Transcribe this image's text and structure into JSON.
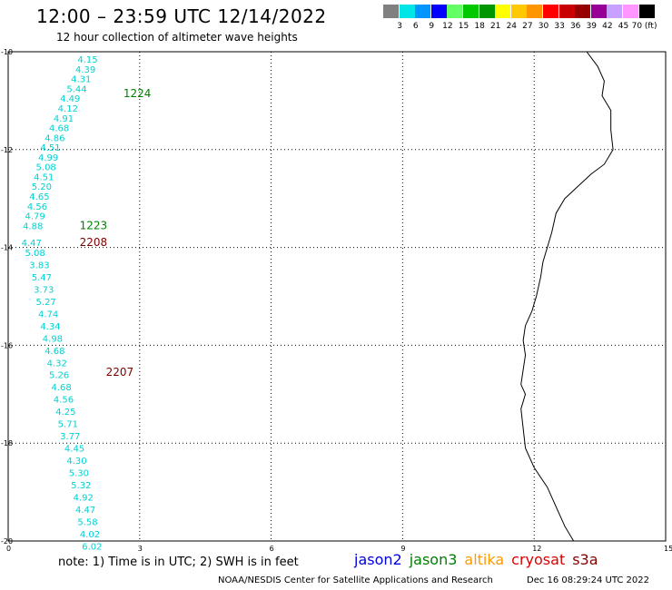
{
  "header": {
    "title": "12:00 – 23:59 UTC 12/14/2022",
    "subtitle": "12 hour collection of altimeter wave heights"
  },
  "color_scale": {
    "swatches": [
      "#808080",
      "#00e6e6",
      "#0096ff",
      "#0000ff",
      "#64ff64",
      "#00c800",
      "#009600",
      "#ffff00",
      "#ffc800",
      "#ff9600",
      "#ff0000",
      "#c80000",
      "#960000",
      "#960096",
      "#c8a0ff",
      "#ff96ff",
      "#000000"
    ],
    "labels": [
      "3",
      "6",
      "9",
      "12",
      "15",
      "18",
      "21",
      "24",
      "27",
      "30",
      "33",
      "36",
      "39",
      "42",
      "45",
      "70 (ft)"
    ]
  },
  "map": {
    "x_ticks": [
      "0",
      "3",
      "6",
      "9",
      "12",
      "15"
    ],
    "y_ticks": [
      "-10",
      "-12",
      "-14",
      "-16",
      "-18",
      "-20"
    ],
    "extent": {
      "lon": [
        0,
        15
      ],
      "lat": [
        -20,
        -10
      ]
    },
    "grid": "dotted",
    "coastline_icon": "coastline-line"
  },
  "passes": [
    {
      "label": "1224",
      "color": "#008000",
      "lat": -10.85,
      "lon": 1.8
    },
    {
      "label": "1223",
      "color": "#008000",
      "lat": -13.55,
      "lon": 0.8
    },
    {
      "label": "2208",
      "color": "#800000",
      "lat": -13.9,
      "lon": 0.8
    },
    {
      "label": "2207",
      "color": "#800000",
      "lat": -16.55,
      "lon": 1.4
    }
  ],
  "wave_heights": [
    {
      "v": "4.15",
      "lat": -10.15,
      "lon": 1.5
    },
    {
      "v": "4.39",
      "lat": -10.35,
      "lon": 1.45
    },
    {
      "v": "4.31",
      "lat": -10.55,
      "lon": 1.35
    },
    {
      "v": "5.44",
      "lat": -10.75,
      "lon": 1.25
    },
    {
      "v": "4.49",
      "lat": -10.95,
      "lon": 1.1
    },
    {
      "v": "4.12",
      "lat": -11.15,
      "lon": 1.05
    },
    {
      "v": "4.91",
      "lat": -11.35,
      "lon": 0.95
    },
    {
      "v": "4.68",
      "lat": -11.55,
      "lon": 0.85
    },
    {
      "v": "4.86",
      "lat": -11.75,
      "lon": 0.75
    },
    {
      "v": "4.51",
      "lat": -11.95,
      "lon": 0.65
    },
    {
      "v": "4.99",
      "lat": -12.15,
      "lon": 0.6
    },
    {
      "v": "5.08",
      "lat": -12.35,
      "lon": 0.55
    },
    {
      "v": "4.51",
      "lat": -12.55,
      "lon": 0.5
    },
    {
      "v": "5.20",
      "lat": -12.75,
      "lon": 0.45
    },
    {
      "v": "4.65",
      "lat": -12.95,
      "lon": 0.4
    },
    {
      "v": "4.56",
      "lat": -13.15,
      "lon": 0.35
    },
    {
      "v": "4.79",
      "lat": -13.35,
      "lon": 0.3
    },
    {
      "v": "4.88",
      "lat": -13.55,
      "lon": 0.25
    },
    {
      "v": "4.47",
      "lat": -13.9,
      "lon": 0.22
    },
    {
      "v": "5.08",
      "lat": -14.1,
      "lon": 0.3
    },
    {
      "v": "3.83",
      "lat": -14.35,
      "lon": 0.4
    },
    {
      "v": "5.47",
      "lat": -14.6,
      "lon": 0.45
    },
    {
      "v": "3.73",
      "lat": -14.85,
      "lon": 0.5
    },
    {
      "v": "5.27",
      "lat": -15.1,
      "lon": 0.55
    },
    {
      "v": "4.74",
      "lat": -15.35,
      "lon": 0.6
    },
    {
      "v": "4.34",
      "lat": -15.6,
      "lon": 0.65
    },
    {
      "v": "4.98",
      "lat": -15.85,
      "lon": 0.7
    },
    {
      "v": "4.68",
      "lat": -16.1,
      "lon": 0.75
    },
    {
      "v": "4.32",
      "lat": -16.35,
      "lon": 0.8
    },
    {
      "v": "5.26",
      "lat": -16.6,
      "lon": 0.85
    },
    {
      "v": "4.68",
      "lat": -16.85,
      "lon": 0.9
    },
    {
      "v": "4.56",
      "lat": -17.1,
      "lon": 0.95
    },
    {
      "v": "4.25",
      "lat": -17.35,
      "lon": 1.0
    },
    {
      "v": "5.71",
      "lat": -17.6,
      "lon": 1.05
    },
    {
      "v": "3.77",
      "lat": -17.85,
      "lon": 1.1
    },
    {
      "v": "4.45",
      "lat": -18.1,
      "lon": 1.2
    },
    {
      "v": "4.30",
      "lat": -18.35,
      "lon": 1.25
    },
    {
      "v": "5.30",
      "lat": -18.6,
      "lon": 1.3
    },
    {
      "v": "5.32",
      "lat": -18.85,
      "lon": 1.35
    },
    {
      "v": "4.92",
      "lat": -19.1,
      "lon": 1.4
    },
    {
      "v": "4.47",
      "lat": -19.35,
      "lon": 1.45
    },
    {
      "v": "5.58",
      "lat": -19.6,
      "lon": 1.5
    },
    {
      "v": "4.02",
      "lat": -19.85,
      "lon": 1.55
    },
    {
      "v": "6.02",
      "lat": -20.1,
      "lon": 1.6
    }
  ],
  "coastline": [
    [
      13.2,
      -10.0
    ],
    [
      13.45,
      -10.3
    ],
    [
      13.6,
      -10.6
    ],
    [
      13.55,
      -10.9
    ],
    [
      13.75,
      -11.2
    ],
    [
      13.75,
      -11.6
    ],
    [
      13.8,
      -12.0
    ],
    [
      13.6,
      -12.3
    ],
    [
      13.3,
      -12.5
    ],
    [
      13.0,
      -12.75
    ],
    [
      12.7,
      -13.0
    ],
    [
      12.5,
      -13.3
    ],
    [
      12.4,
      -13.7
    ],
    [
      12.3,
      -14.0
    ],
    [
      12.2,
      -14.3
    ],
    [
      12.15,
      -14.6
    ],
    [
      12.05,
      -15.0
    ],
    [
      11.95,
      -15.3
    ],
    [
      11.8,
      -15.6
    ],
    [
      11.75,
      -15.9
    ],
    [
      11.8,
      -16.2
    ],
    [
      11.75,
      -16.5
    ],
    [
      11.7,
      -16.8
    ],
    [
      11.8,
      -17.0
    ],
    [
      11.7,
      -17.3
    ],
    [
      11.75,
      -17.7
    ],
    [
      11.8,
      -18.1
    ],
    [
      12.0,
      -18.5
    ],
    [
      12.3,
      -18.9
    ],
    [
      12.5,
      -19.3
    ],
    [
      12.7,
      -19.7
    ],
    [
      12.9,
      -20.0
    ]
  ],
  "note": "note:  1) Time is in UTC;  2) SWH is in feet",
  "legend": [
    {
      "name": "jason2",
      "color": "#0000dd"
    },
    {
      "name": "jason3",
      "color": "#008000"
    },
    {
      "name": "altika",
      "color": "#ff9900"
    },
    {
      "name": "cryosat",
      "color": "#dd0000"
    },
    {
      "name": "s3a",
      "color": "#800000"
    }
  ],
  "footer": {
    "credit": "NOAA/NESDIS Center for Satellite Applications and Research",
    "timestamp": "Dec 16 08:29:24 UTC 2022"
  }
}
